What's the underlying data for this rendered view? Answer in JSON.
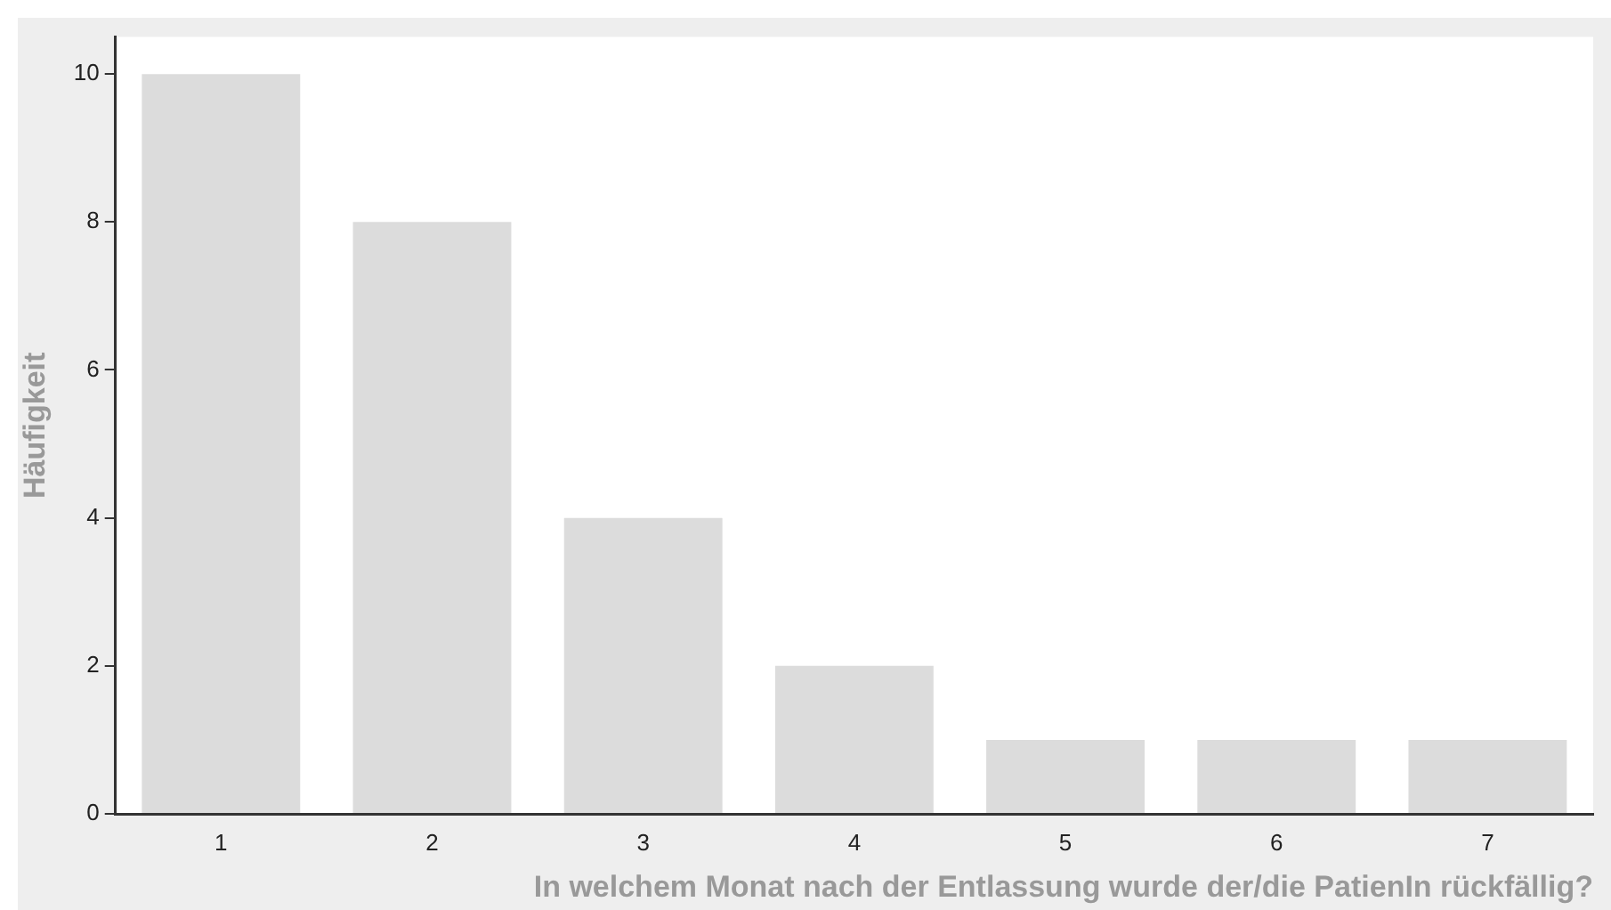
{
  "chart_data": {
    "type": "bar",
    "xlabel": "In welchem Monat nach der Entlassung wurde der/die PatienIn rückfällig?",
    "ylabel": "Häufigkeit",
    "categories": [
      "1",
      "2",
      "3",
      "4",
      "5",
      "6",
      "7"
    ],
    "values": [
      10,
      8,
      4,
      2,
      1,
      1,
      1
    ],
    "color": "#dcdcdc",
    "ylim": [
      0,
      10.5
    ],
    "yticks": [
      0,
      2,
      4,
      6,
      8,
      10
    ],
    "grid": false,
    "legend": false
  }
}
